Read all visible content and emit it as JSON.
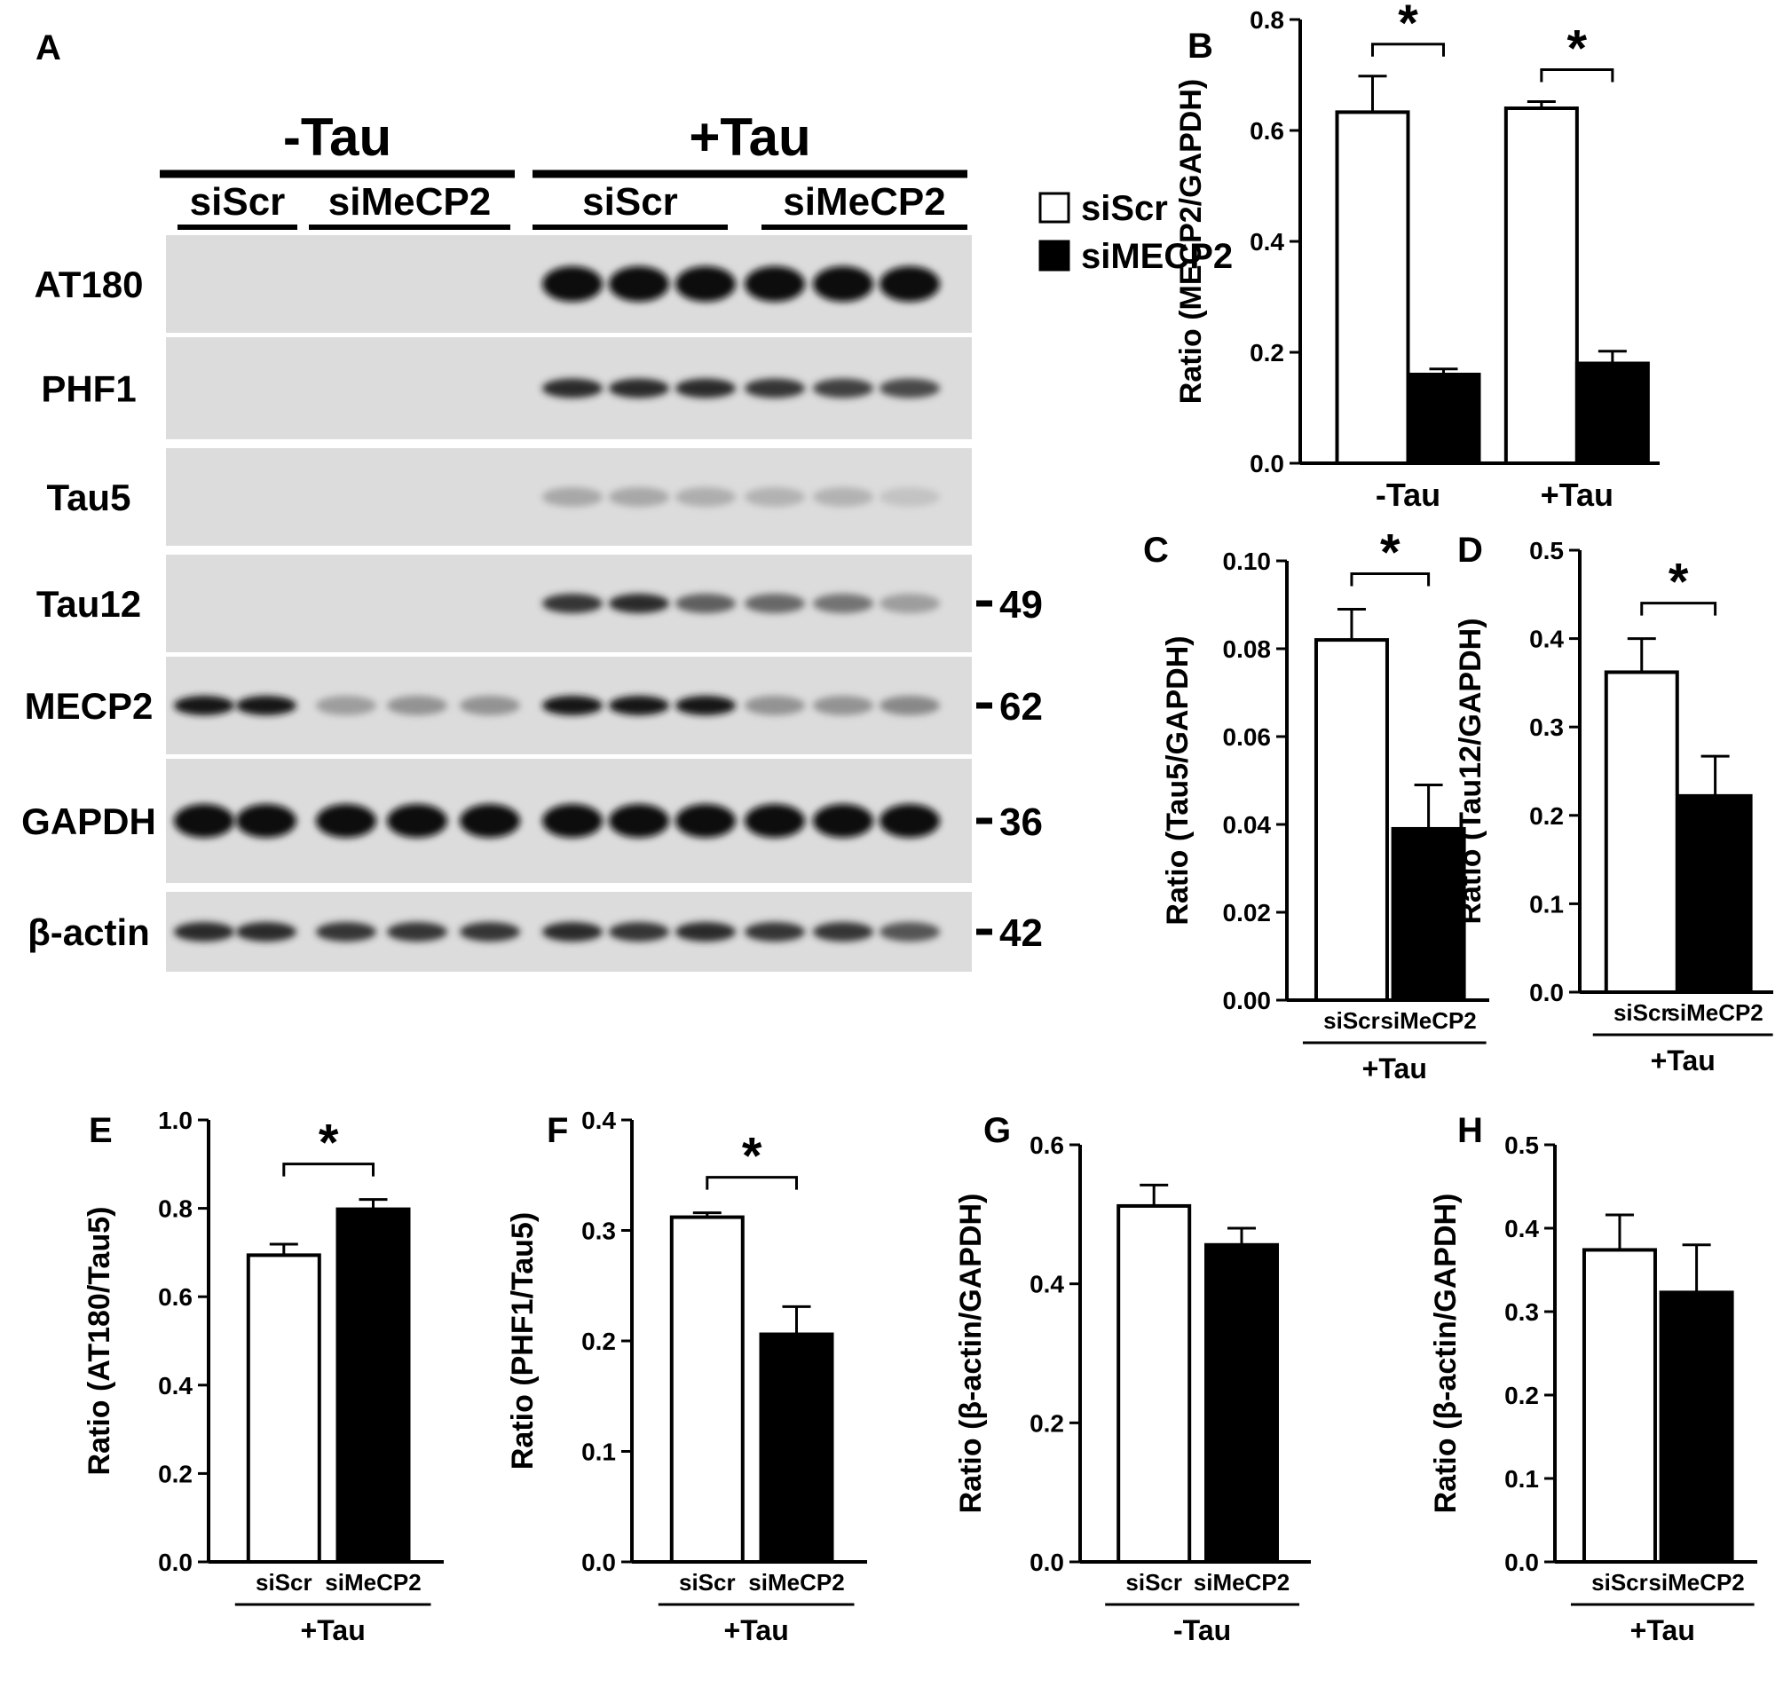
{
  "panel_labels": [
    "A",
    "B",
    "C",
    "D",
    "E",
    "F",
    "G",
    "H"
  ],
  "blot": {
    "conditions": [
      {
        "label": "-Tau",
        "groups": [
          "siScr",
          "siMeCP2"
        ]
      },
      {
        "label": "+Tau",
        "groups": [
          "siScr",
          "siMeCP2"
        ]
      }
    ],
    "rows": [
      {
        "label": "AT180",
        "marker": ""
      },
      {
        "label": "PHF1",
        "marker": ""
      },
      {
        "label": "Tau5",
        "marker": ""
      },
      {
        "label": "Tau12",
        "marker": "49"
      },
      {
        "label": "MECP2",
        "marker": "62"
      },
      {
        "label": "GAPDH",
        "marker": "36"
      },
      {
        "label": "β-actin",
        "marker": "42"
      }
    ],
    "lane_intensity": {
      "AT180": [
        0,
        0,
        0,
        0,
        0,
        1,
        1,
        1,
        1,
        1,
        1
      ],
      "PHF1": [
        0,
        0,
        0,
        0,
        0,
        0.85,
        0.85,
        0.85,
        0.8,
        0.75,
        0.7
      ],
      "Tau5": [
        0,
        0,
        0,
        0,
        0,
        0.25,
        0.25,
        0.22,
        0.2,
        0.2,
        0.12
      ],
      "Tau12": [
        0,
        0,
        0,
        0,
        0,
        0.8,
        0.85,
        0.6,
        0.55,
        0.5,
        0.3
      ],
      "MECP2": [
        0.95,
        0.95,
        0.3,
        0.35,
        0.35,
        0.95,
        0.95,
        0.95,
        0.35,
        0.35,
        0.4
      ],
      "GAPDH": [
        1,
        1,
        1,
        1,
        1,
        1,
        1,
        1,
        1,
        1,
        1
      ],
      "β-actin": [
        0.85,
        0.85,
        0.8,
        0.8,
        0.8,
        0.85,
        0.8,
        0.85,
        0.8,
        0.8,
        0.65
      ]
    }
  },
  "legend": {
    "items": [
      {
        "label": "siScr",
        "fill": "#ffffff"
      },
      {
        "label": "siMECP2",
        "fill": "#000000"
      }
    ]
  },
  "colors": {
    "siScr": "#ffffff",
    "siMeCP2": "#000000",
    "axis": "#000000"
  },
  "chart_data": [
    {
      "id": "B",
      "type": "bar",
      "ylabel": "Ratio (MECP2/GAPDH)",
      "ylim": [
        0,
        0.8
      ],
      "yticks": [
        "0.0",
        "0.2",
        "0.4",
        "0.6",
        "0.8"
      ],
      "categories": [
        "-Tau",
        "+Tau"
      ],
      "series": [
        {
          "name": "siScr",
          "values": [
            0.633,
            0.64
          ],
          "errors": [
            0.065,
            0.012
          ]
        },
        {
          "name": "siMECP2",
          "values": [
            0.16,
            0.18
          ],
          "errors": [
            0.01,
            0.022
          ]
        }
      ],
      "significance": [
        "*",
        "*"
      ]
    },
    {
      "id": "C",
      "type": "bar",
      "ylabel": "Ratio (Tau5/GAPDH)",
      "ylim": [
        0,
        0.1
      ],
      "yticks": [
        "0.00",
        "0.02",
        "0.04",
        "0.06",
        "0.08",
        "0.10"
      ],
      "categories": [
        "siScr",
        "siMeCP2"
      ],
      "group_label": "+Tau",
      "values": [
        0.082,
        0.039
      ],
      "errors": [
        0.007,
        0.01
      ],
      "significance": "*"
    },
    {
      "id": "D",
      "type": "bar",
      "ylabel": "Ratio (Tau12/GAPDH)",
      "ylim": [
        0,
        0.5
      ],
      "yticks": [
        "0.0",
        "0.1",
        "0.2",
        "0.3",
        "0.4",
        "0.5"
      ],
      "categories": [
        "siScr",
        "siMeCP2"
      ],
      "group_label": "+Tau",
      "values": [
        0.362,
        0.222
      ],
      "errors": [
        0.038,
        0.045
      ],
      "significance": "*"
    },
    {
      "id": "E",
      "type": "bar",
      "ylabel": "Ratio (AT180/Tau5)",
      "ylim": [
        0,
        1.0
      ],
      "yticks": [
        "0.0",
        "0.2",
        "0.4",
        "0.6",
        "0.8",
        "1.0"
      ],
      "categories": [
        "siScr",
        "siMeCP2"
      ],
      "group_label": "+Tau",
      "values": [
        0.694,
        0.798
      ],
      "errors": [
        0.025,
        0.022
      ],
      "significance": "*"
    },
    {
      "id": "F",
      "type": "bar",
      "ylabel": "Ratio (PHF1/Tau5)",
      "ylim": [
        0,
        0.4
      ],
      "yticks": [
        "0.0",
        "0.1",
        "0.2",
        "0.3",
        "0.4"
      ],
      "categories": [
        "siScr",
        "siMeCP2"
      ],
      "group_label": "+Tau",
      "values": [
        0.312,
        0.206
      ],
      "errors": [
        0.004,
        0.025
      ],
      "significance": "*"
    },
    {
      "id": "G",
      "type": "bar",
      "ylabel": "Ratio (β-actin/GAPDH)",
      "ylim": [
        0,
        0.6
      ],
      "yticks": [
        "0.0",
        "0.2",
        "0.4",
        "0.6"
      ],
      "categories": [
        "siScr",
        "siMeCP2"
      ],
      "group_label": "-Tau",
      "values": [
        0.512,
        0.456
      ],
      "errors": [
        0.03,
        0.024
      ],
      "significance": ""
    },
    {
      "id": "H",
      "type": "bar",
      "ylabel": "Ratio (β-actin/GAPDH)",
      "ylim": [
        0,
        0.5
      ],
      "yticks": [
        "0.0",
        "0.1",
        "0.2",
        "0.3",
        "0.4",
        "0.5"
      ],
      "categories": [
        "siScr",
        "siMeCP2"
      ],
      "group_label": "+Tau",
      "values": [
        0.374,
        0.323
      ],
      "errors": [
        0.042,
        0.057
      ],
      "significance": ""
    }
  ]
}
